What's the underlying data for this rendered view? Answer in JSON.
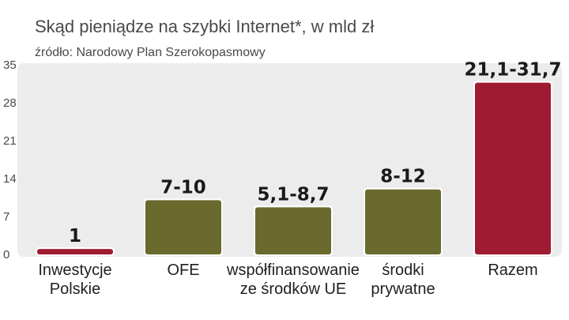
{
  "title": "Skąd pieniądze na szybki Internet*, w mld zł",
  "subtitle": "źródło: Narodowy Plan Szerokopasmowy",
  "colors": {
    "background_panel": "#ececec",
    "bar_olive": "#6b6a2e",
    "bar_red": "#9e1b32"
  },
  "chart_data": {
    "type": "bar",
    "title": "Skąd pieniądze na szybki Internet*, w mld zł",
    "subtitle": "źródło: Narodowy Plan Szerokopasmowy",
    "xlabel": "",
    "ylabel": "",
    "ylim": [
      0,
      35
    ],
    "yticks": [
      0,
      7,
      14,
      21,
      28,
      35
    ],
    "grid": false,
    "categories": [
      [
        "Inwestycje",
        "Polskie"
      ],
      [
        "OFE"
      ],
      [
        "współfinansowanie",
        "ze środków UE"
      ],
      [
        "środki",
        "prywatne"
      ],
      [
        "Razem"
      ]
    ],
    "values": [
      1,
      10,
      8.7,
      12,
      31.7
    ],
    "value_labels": [
      "1",
      "7-10",
      "5,1-8,7",
      "8-12",
      "21,1-31,7"
    ],
    "bar_colors": [
      "#9e1b32",
      "#6b6a2e",
      "#6b6a2e",
      "#6b6a2e",
      "#9e1b32"
    ]
  }
}
